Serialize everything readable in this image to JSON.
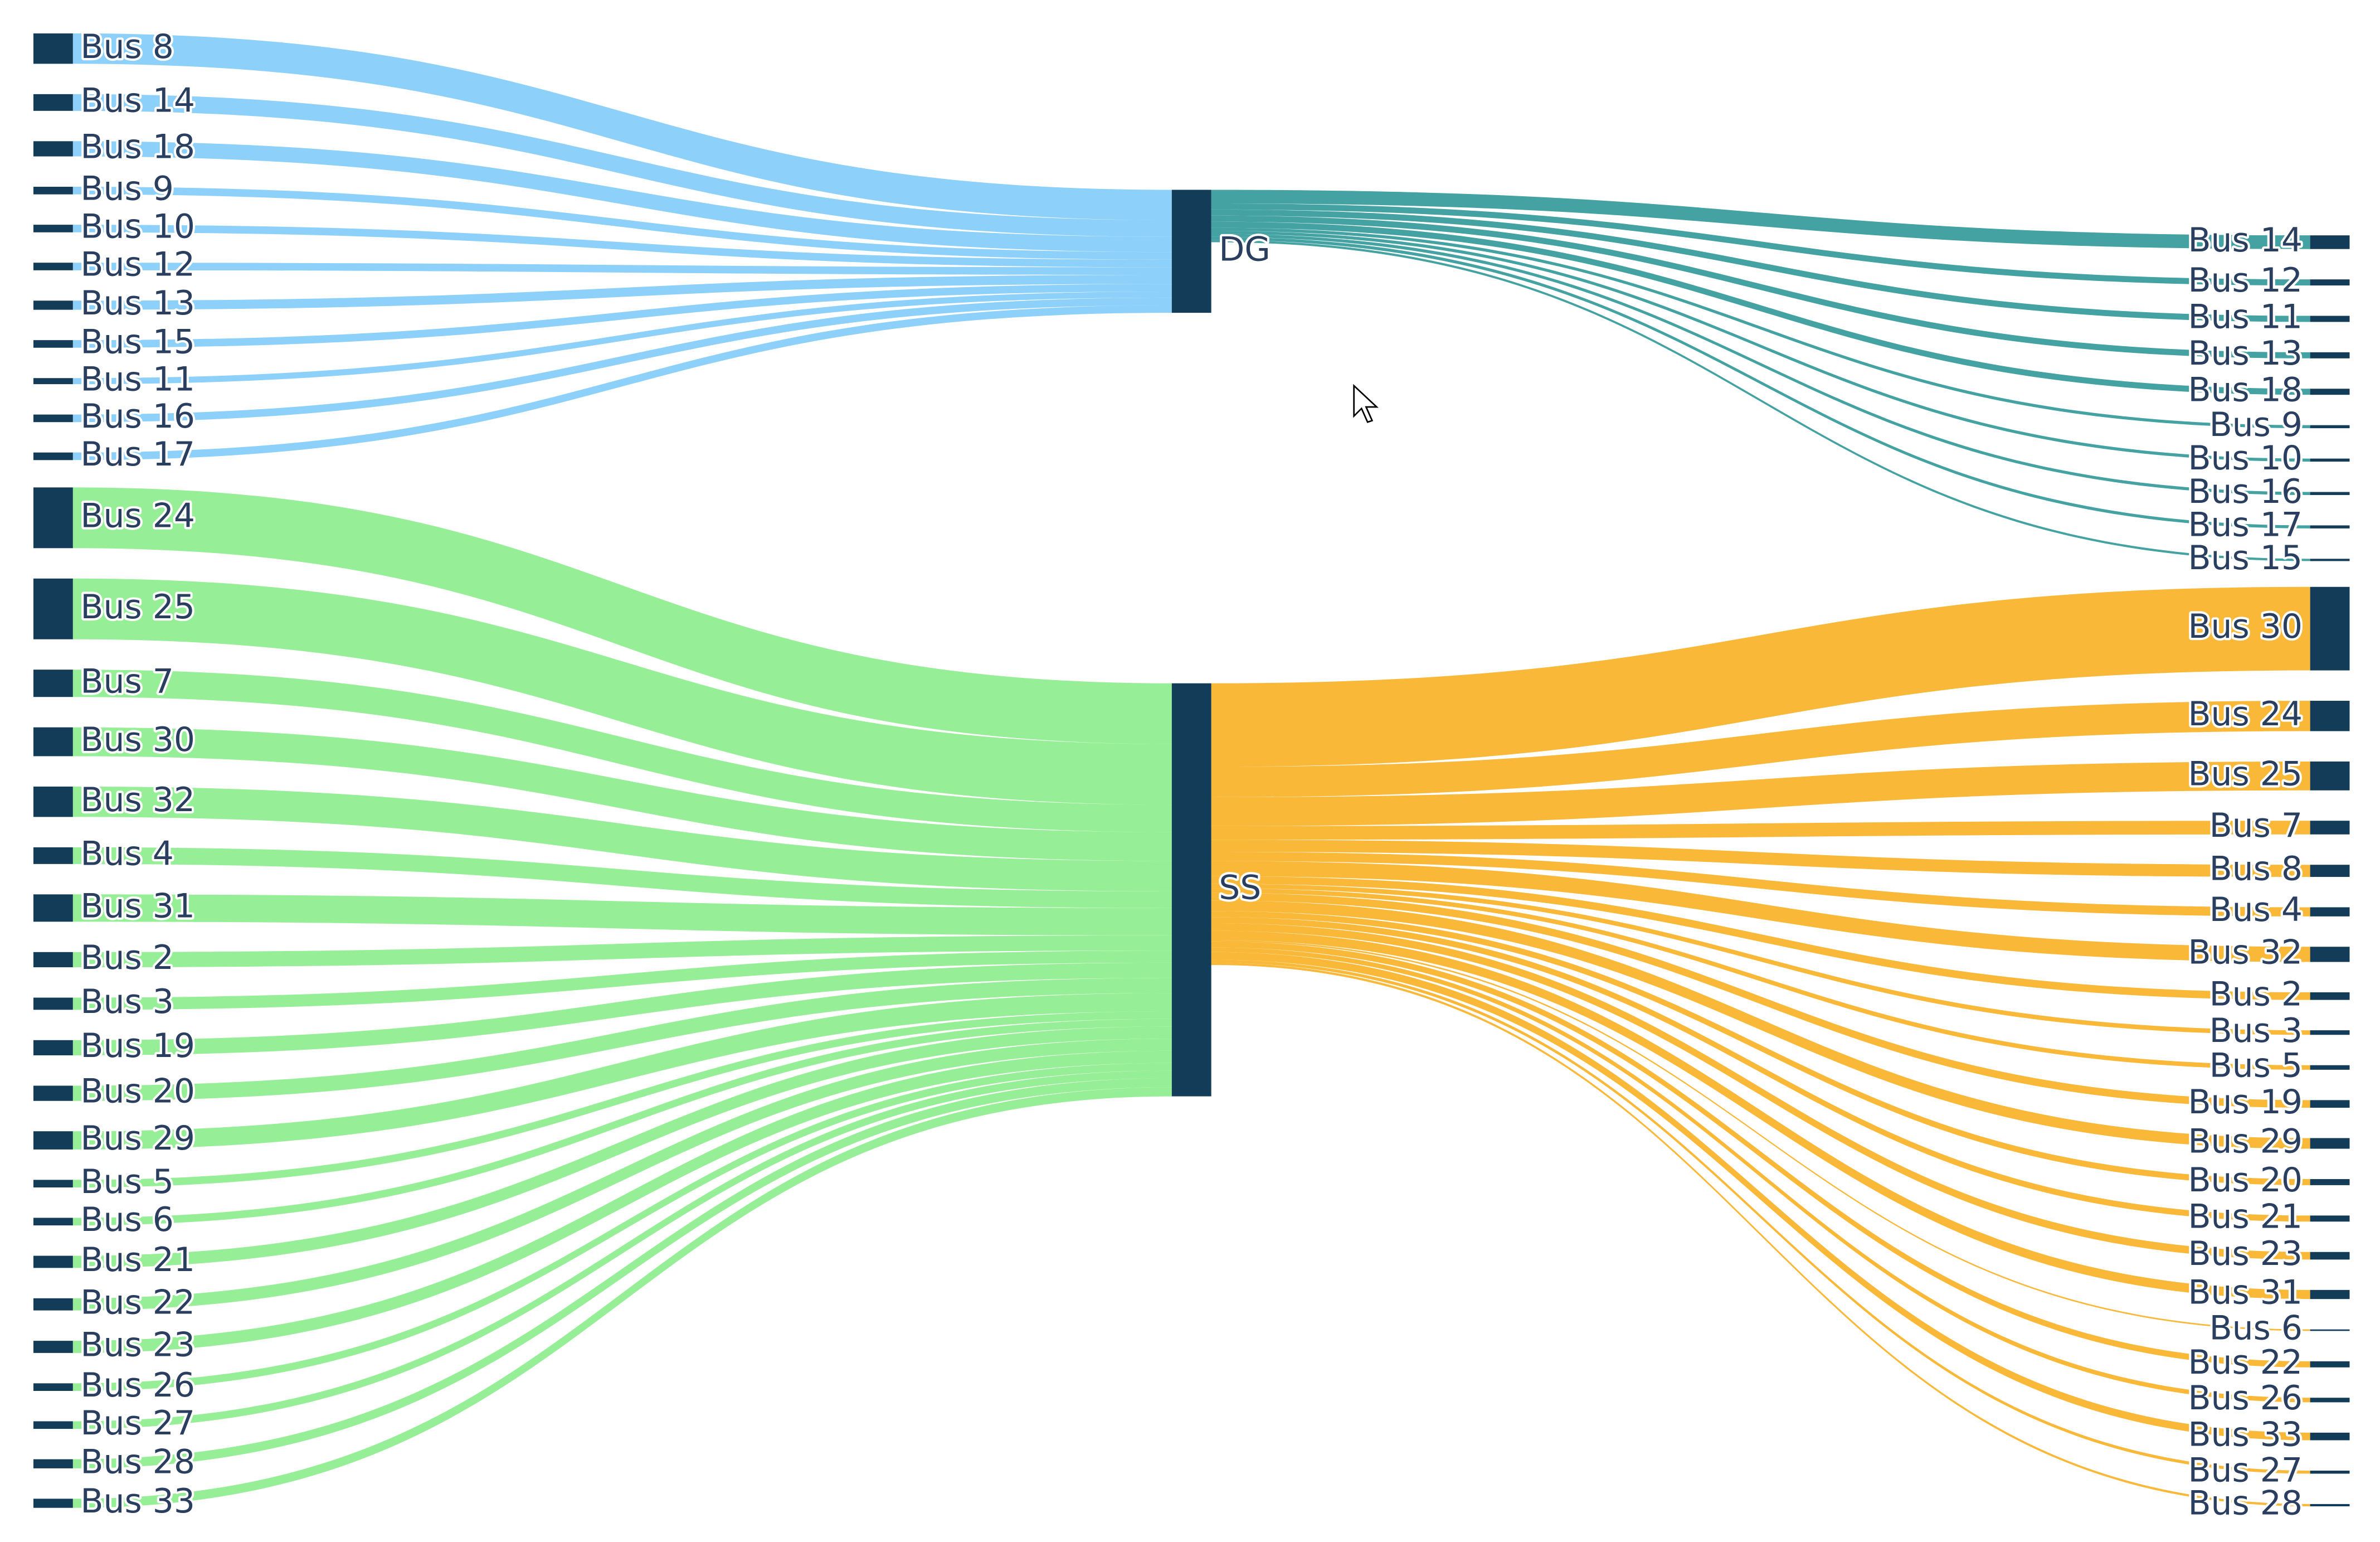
{
  "chart_data": {
    "type": "sankey",
    "node_color": "#123c57",
    "hubs": [
      {
        "label": "DG",
        "input_color": "#87cefa",
        "output_color": "#3a9d9d",
        "inputs": [
          {
            "label": "Bus 8",
            "value": 20
          },
          {
            "label": "Bus 14",
            "value": 11
          },
          {
            "label": "Bus 18",
            "value": 10
          },
          {
            "label": "Bus 9",
            "value": 5
          },
          {
            "label": "Bus 10",
            "value": 5
          },
          {
            "label": "Bus 12",
            "value": 5
          },
          {
            "label": "Bus 13",
            "value": 6
          },
          {
            "label": "Bus 15",
            "value": 5
          },
          {
            "label": "Bus 11",
            "value": 4
          },
          {
            "label": "Bus 16",
            "value": 5
          },
          {
            "label": "Bus 17",
            "value": 5
          }
        ],
        "outputs": [
          {
            "label": "Bus 14",
            "value": 9
          },
          {
            "label": "Bus 12",
            "value": 4
          },
          {
            "label": "Bus 11",
            "value": 4
          },
          {
            "label": "Bus 13",
            "value": 4
          },
          {
            "label": "Bus 18",
            "value": 4
          },
          {
            "label": "Bus 9",
            "value": 2
          },
          {
            "label": "Bus 10",
            "value": 2
          },
          {
            "label": "Bus 16",
            "value": 2
          },
          {
            "label": "Bus 17",
            "value": 2
          },
          {
            "label": "Bus 15",
            "value": 1.5
          }
        ]
      },
      {
        "label": "SS",
        "input_color": "#90ee90",
        "output_color": "#f9b42d",
        "inputs": [
          {
            "label": "Bus 24",
            "value": 40
          },
          {
            "label": "Bus 25",
            "value": 40
          },
          {
            "label": "Bus 7",
            "value": 18
          },
          {
            "label": "Bus 30",
            "value": 19
          },
          {
            "label": "Bus 32",
            "value": 20
          },
          {
            "label": "Bus 4",
            "value": 11
          },
          {
            "label": "Bus 31",
            "value": 18
          },
          {
            "label": "Bus 2",
            "value": 10
          },
          {
            "label": "Bus 3",
            "value": 8
          },
          {
            "label": "Bus 19",
            "value": 10
          },
          {
            "label": "Bus 20",
            "value": 10
          },
          {
            "label": "Bus 29",
            "value": 12
          },
          {
            "label": "Bus 5",
            "value": 5
          },
          {
            "label": "Bus 6",
            "value": 5
          },
          {
            "label": "Bus 21",
            "value": 8
          },
          {
            "label": "Bus 22",
            "value": 8
          },
          {
            "label": "Bus 23",
            "value": 8
          },
          {
            "label": "Bus 26",
            "value": 5
          },
          {
            "label": "Bus 27",
            "value": 5
          },
          {
            "label": "Bus 28",
            "value": 6
          },
          {
            "label": "Bus 33",
            "value": 6
          }
        ],
        "outputs": [
          {
            "label": "Bus 30",
            "value": 55
          },
          {
            "label": "Bus 24",
            "value": 20
          },
          {
            "label": "Bus 25",
            "value": 19
          },
          {
            "label": "Bus 7",
            "value": 9
          },
          {
            "label": "Bus 8",
            "value": 8
          },
          {
            "label": "Bus 4",
            "value": 6
          },
          {
            "label": "Bus 32",
            "value": 10
          },
          {
            "label": "Bus 2",
            "value": 5
          },
          {
            "label": "Bus 3",
            "value": 3
          },
          {
            "label": "Bus 5",
            "value": 3
          },
          {
            "label": "Bus 19",
            "value": 5
          },
          {
            "label": "Bus 29",
            "value": 7
          },
          {
            "label": "Bus 20",
            "value": 4
          },
          {
            "label": "Bus 21",
            "value": 4
          },
          {
            "label": "Bus 23",
            "value": 5
          },
          {
            "label": "Bus 31",
            "value": 6
          },
          {
            "label": "Bus 6",
            "value": 1
          },
          {
            "label": "Bus 22",
            "value": 4
          },
          {
            "label": "Bus 26",
            "value": 3
          },
          {
            "label": "Bus 33",
            "value": 5
          },
          {
            "label": "Bus 27",
            "value": 2
          },
          {
            "label": "Bus 28",
            "value": 1.5
          }
        ]
      }
    ]
  }
}
